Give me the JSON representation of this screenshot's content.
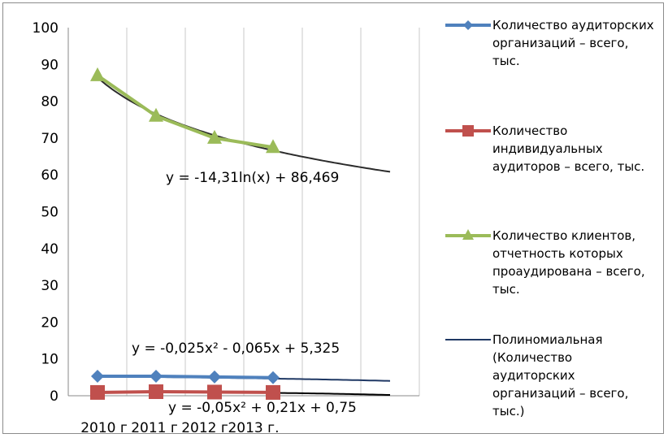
{
  "chart_data": {
    "type": "line",
    "categories": [
      "2010 г",
      "2011 г",
      "2012 г",
      "2013 г."
    ],
    "ylim": [
      0,
      100
    ],
    "yticks": [
      0,
      10,
      20,
      30,
      40,
      50,
      60,
      70,
      80,
      90,
      100
    ],
    "grid": "vertical",
    "legend": "right",
    "series": [
      {
        "name": "Количество аудиторских организаций – всего, тыс.",
        "values": [
          5.3,
          5.3,
          5.1,
          4.9
        ],
        "color": "#4f81bd",
        "marker": "diamond"
      },
      {
        "name": "Количество индивидуальных аудиторов – всего, тыс.",
        "values": [
          0.9,
          1.1,
          1.0,
          0.9
        ],
        "color": "#c0504d",
        "marker": "square"
      },
      {
        "name": "Количество клиентов, отчетность которых проаудирована – всего, тыс.",
        "values": [
          87,
          76,
          70,
          67.5
        ],
        "color": "#9bbb59",
        "marker": "triangle"
      }
    ],
    "trendlines": [
      {
        "name": "Полиномиальная (Количество аудиторских организаций – всего, тыс.)",
        "equation": "y = -0,025x² - 0,065x + 5,325",
        "color": "#1f3864",
        "x_end": 6,
        "kind": "poly",
        "coef": [
          -0.025,
          -0.065,
          5.325
        ]
      },
      {
        "name": "",
        "equation": "y = -0,05x² + 0,21x + 0,75",
        "color": "#000000",
        "x_end": 6,
        "kind": "poly",
        "coef": [
          -0.05,
          0.21,
          0.75
        ]
      },
      {
        "name": "",
        "equation": "y = -14,31ln(x) + 86,469",
        "color": "#2b2b2b",
        "x_end": 6,
        "kind": "log",
        "coef": [
          -14.31,
          86.469
        ]
      }
    ],
    "legend_lines": [
      [
        "Количество аудиторских",
        "организаций –  всего,",
        "тыс."
      ],
      [
        "Количество",
        "индивидуальных",
        "аудиторов –  всего, тыс."
      ],
      [
        "Количество клиентов,",
        "отчетность которых",
        "проаудирована –  всего,",
        "тыс."
      ],
      [
        "Полиномиальная",
        "(Количество",
        "аудиторских",
        "организаций –  всего,",
        "тыс.)"
      ]
    ]
  }
}
